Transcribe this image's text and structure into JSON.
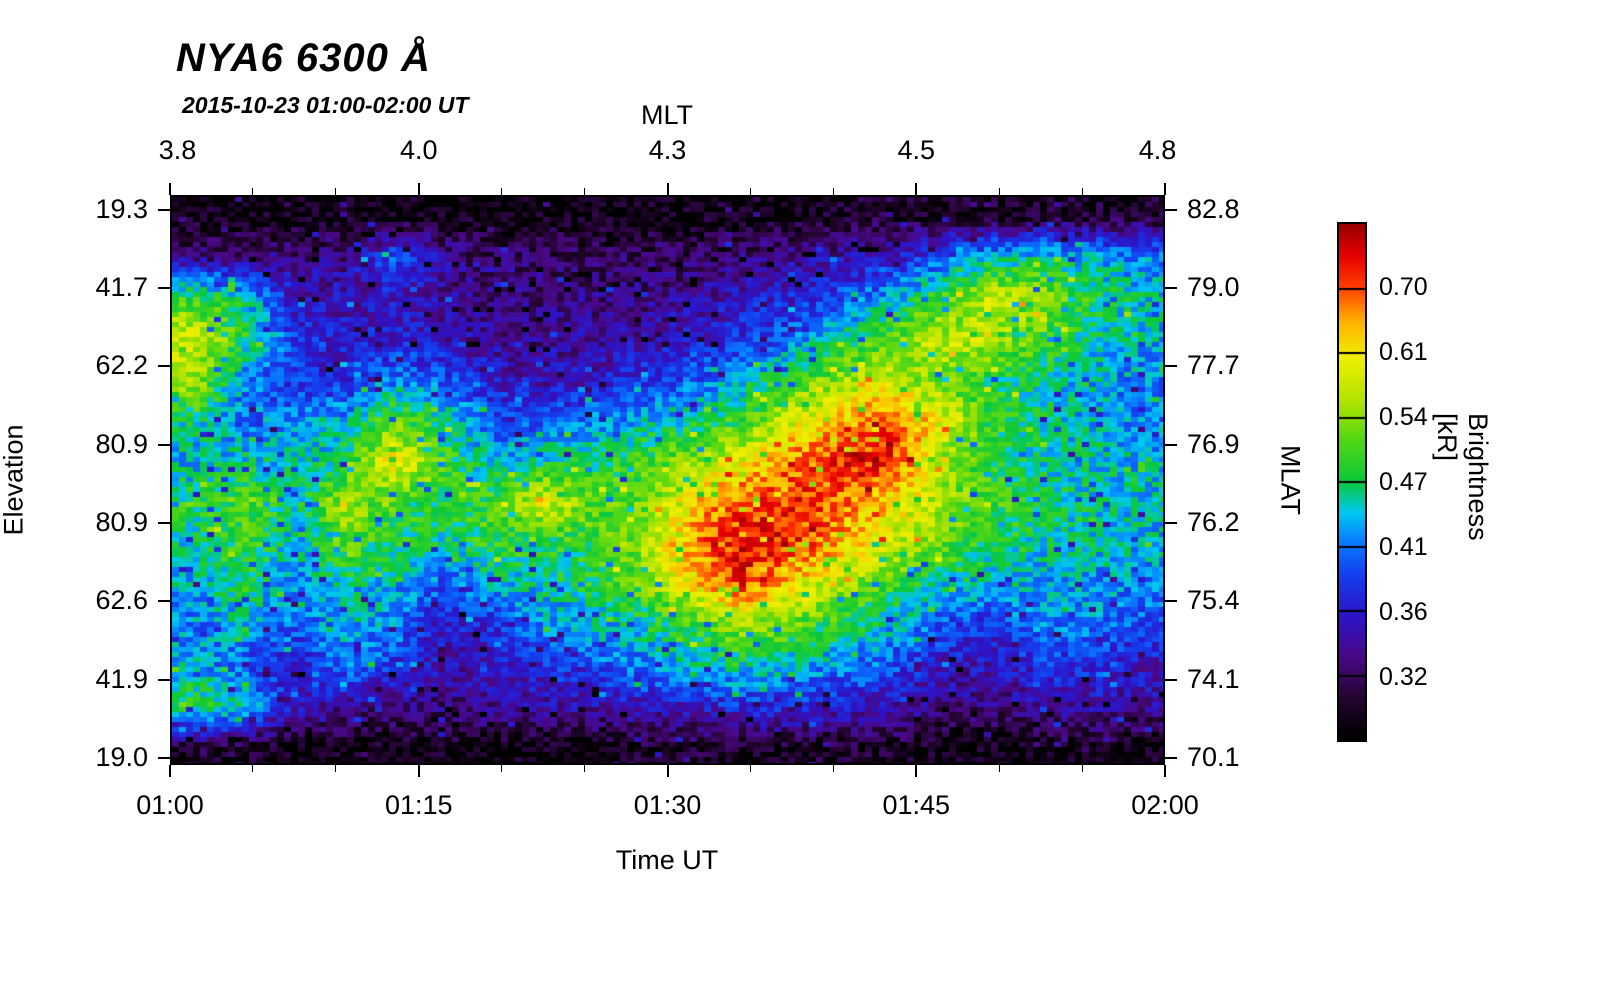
{
  "title": "NYA6 6300 Å",
  "subtitle": "2015-10-23 01:00-02:00 UT",
  "axes": {
    "top": {
      "label": "MLT",
      "ticks": [
        "3.8",
        "4.0",
        "4.3",
        "4.5",
        "4.8"
      ]
    },
    "bottom": {
      "label": "Time UT",
      "ticks": [
        "01:00",
        "01:15",
        "01:30",
        "01:45",
        "02:00"
      ]
    },
    "left": {
      "label": "Elevation",
      "ticks": [
        "19.3",
        "41.7",
        "62.2",
        "80.9",
        "80.9",
        "62.6",
        "41.9",
        "19.0"
      ]
    },
    "right": {
      "label": "MLAT",
      "ticks": [
        "82.8",
        "79.0",
        "77.7",
        "76.9",
        "76.2",
        "75.4",
        "74.1",
        "70.1"
      ]
    }
  },
  "colorbar": {
    "label": "Brightness [kR]",
    "ticks": [
      "0.70",
      "0.61",
      "0.54",
      "0.47",
      "0.41",
      "0.36",
      "0.32"
    ]
  },
  "chart_data": {
    "type": "heatmap",
    "title": "NYA6 6300 Å",
    "subtitle": "2015-10-23 01:00-02:00 UT",
    "xlabel": "Time UT",
    "ylabel_left": "Elevation",
    "ylabel_right": "MLAT",
    "x_ticks_time": [
      "01:00",
      "01:15",
      "01:30",
      "01:45",
      "02:00"
    ],
    "x_ticks_mlt": [
      3.8,
      4.0,
      4.3,
      4.5,
      4.8
    ],
    "y_ticks_elevation": [
      19.3,
      41.7,
      62.2,
      80.9,
      80.9,
      62.6,
      41.9,
      19.0
    ],
    "y_ticks_mlat": [
      82.8,
      79.0,
      77.7,
      76.9,
      76.2,
      75.4,
      74.1,
      70.1
    ],
    "value_label": "Brightness [kR]",
    "value_scale": "log",
    "vmin": 0.281,
    "vmax": 0.797,
    "colorbar_ticks": [
      0.7,
      0.61,
      0.54,
      0.47,
      0.41,
      0.36,
      0.32
    ],
    "grid_note": "Brightness in kR; rows top-to-bottom span MLAT 82.8 to 70.1 (elevation 19.3 up over zenith and down to 19.0); columns left-to-right span 01:00 to 02:00 UT",
    "grid": [
      [
        0.29,
        0.29,
        0.29,
        0.29,
        0.29,
        0.29,
        0.29,
        0.29,
        0.29,
        0.29,
        0.29,
        0.29,
        0.29,
        0.3,
        0.3,
        0.3,
        0.3,
        0.3,
        0.3,
        0.3
      ],
      [
        0.33,
        0.33,
        0.33,
        0.34,
        0.4,
        0.34,
        0.32,
        0.32,
        0.32,
        0.32,
        0.32,
        0.33,
        0.34,
        0.35,
        0.36,
        0.4,
        0.44,
        0.46,
        0.44,
        0.42
      ],
      [
        0.5,
        0.45,
        0.36,
        0.35,
        0.36,
        0.34,
        0.33,
        0.33,
        0.33,
        0.33,
        0.34,
        0.36,
        0.37,
        0.4,
        0.44,
        0.5,
        0.58,
        0.55,
        0.48,
        0.45
      ],
      [
        0.58,
        0.48,
        0.38,
        0.36,
        0.37,
        0.35,
        0.34,
        0.34,
        0.34,
        0.35,
        0.36,
        0.38,
        0.41,
        0.46,
        0.52,
        0.58,
        0.55,
        0.5,
        0.46,
        0.44
      ],
      [
        0.55,
        0.42,
        0.38,
        0.37,
        0.42,
        0.4,
        0.36,
        0.35,
        0.36,
        0.38,
        0.4,
        0.44,
        0.5,
        0.55,
        0.58,
        0.52,
        0.48,
        0.46,
        0.44,
        0.42
      ],
      [
        0.46,
        0.4,
        0.42,
        0.44,
        0.52,
        0.46,
        0.4,
        0.4,
        0.42,
        0.44,
        0.46,
        0.5,
        0.58,
        0.65,
        0.7,
        0.6,
        0.5,
        0.46,
        0.44,
        0.42
      ],
      [
        0.44,
        0.46,
        0.44,
        0.48,
        0.62,
        0.5,
        0.44,
        0.46,
        0.48,
        0.5,
        0.55,
        0.6,
        0.68,
        0.74,
        0.72,
        0.55,
        0.48,
        0.46,
        0.45,
        0.44
      ],
      [
        0.48,
        0.52,
        0.46,
        0.55,
        0.5,
        0.48,
        0.5,
        0.6,
        0.5,
        0.52,
        0.62,
        0.7,
        0.72,
        0.68,
        0.62,
        0.55,
        0.5,
        0.47,
        0.46,
        0.45
      ],
      [
        0.46,
        0.5,
        0.44,
        0.52,
        0.48,
        0.46,
        0.5,
        0.48,
        0.5,
        0.55,
        0.68,
        0.75,
        0.72,
        0.65,
        0.58,
        0.52,
        0.48,
        0.46,
        0.45,
        0.44
      ],
      [
        0.44,
        0.48,
        0.42,
        0.46,
        0.44,
        0.4,
        0.44,
        0.46,
        0.48,
        0.52,
        0.62,
        0.72,
        0.62,
        0.55,
        0.5,
        0.46,
        0.44,
        0.43,
        0.43,
        0.42
      ],
      [
        0.42,
        0.44,
        0.4,
        0.44,
        0.42,
        0.36,
        0.38,
        0.42,
        0.44,
        0.46,
        0.5,
        0.55,
        0.52,
        0.48,
        0.44,
        0.4,
        0.38,
        0.42,
        0.42,
        0.4
      ],
      [
        0.44,
        0.4,
        0.36,
        0.42,
        0.38,
        0.35,
        0.36,
        0.38,
        0.4,
        0.42,
        0.44,
        0.46,
        0.44,
        0.42,
        0.4,
        0.36,
        0.35,
        0.38,
        0.38,
        0.36
      ],
      [
        0.48,
        0.44,
        0.36,
        0.34,
        0.33,
        0.33,
        0.34,
        0.34,
        0.35,
        0.36,
        0.36,
        0.38,
        0.38,
        0.36,
        0.35,
        0.33,
        0.33,
        0.34,
        0.35,
        0.34
      ],
      [
        0.3,
        0.3,
        0.29,
        0.29,
        0.29,
        0.29,
        0.29,
        0.29,
        0.29,
        0.3,
        0.3,
        0.3,
        0.3,
        0.3,
        0.3,
        0.29,
        0.29,
        0.29,
        0.29,
        0.29
      ]
    ],
    "colormap": [
      [
        0.0,
        "#000000"
      ],
      [
        0.08,
        "#240530"
      ],
      [
        0.16,
        "#4a0886"
      ],
      [
        0.24,
        "#2e14c8"
      ],
      [
        0.32,
        "#1440f0"
      ],
      [
        0.38,
        "#0a78ff"
      ],
      [
        0.44,
        "#00c8f0"
      ],
      [
        0.5,
        "#0ac83c"
      ],
      [
        0.58,
        "#52d816"
      ],
      [
        0.66,
        "#b4e400"
      ],
      [
        0.74,
        "#f0f000"
      ],
      [
        0.81,
        "#ffb400"
      ],
      [
        0.88,
        "#ff3c00"
      ],
      [
        0.94,
        "#e60000"
      ],
      [
        1.0,
        "#990000"
      ]
    ]
  }
}
